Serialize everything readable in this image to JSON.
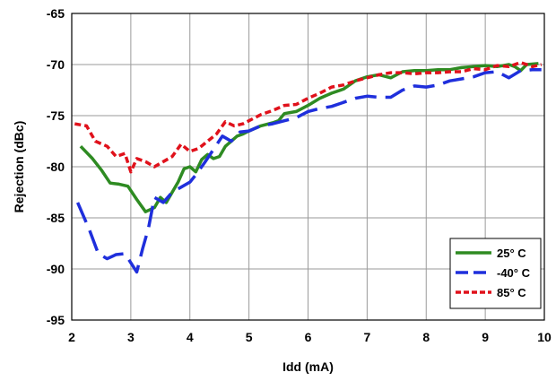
{
  "chart_data": {
    "type": "line",
    "title": "",
    "xlabel": "Idd (mA)",
    "ylabel": "Rejection (dBc)",
    "xlim": [
      2,
      10
    ],
    "ylim": [
      -95,
      -65
    ],
    "xticks": [
      "2",
      "3",
      "4",
      "5",
      "6",
      "7",
      "8",
      "9",
      "10"
    ],
    "yticks": [
      "-65",
      "-70",
      "-75",
      "-80",
      "-85",
      "-90",
      "-95"
    ],
    "grid": true,
    "legend_position": "bottom-right",
    "series": [
      {
        "name": "25° C",
        "color": "#2e8b22",
        "dash": "solid",
        "points": [
          [
            2.15,
            -78
          ],
          [
            2.35,
            -79.2
          ],
          [
            2.5,
            -80.3
          ],
          [
            2.65,
            -81.6
          ],
          [
            2.8,
            -81.7
          ],
          [
            2.95,
            -81.9
          ],
          [
            3.1,
            -83.2
          ],
          [
            3.25,
            -84.4
          ],
          [
            3.4,
            -84
          ],
          [
            3.5,
            -83
          ],
          [
            3.6,
            -83.5
          ],
          [
            3.7,
            -82.5
          ],
          [
            3.8,
            -81.5
          ],
          [
            3.9,
            -80.2
          ],
          [
            4.0,
            -80.0
          ],
          [
            4.1,
            -80.5
          ],
          [
            4.2,
            -79.3
          ],
          [
            4.3,
            -78.8
          ],
          [
            4.4,
            -79.2
          ],
          [
            4.5,
            -79.0
          ],
          [
            4.6,
            -78.0
          ],
          [
            4.7,
            -77.5
          ],
          [
            4.8,
            -77.0
          ],
          [
            4.9,
            -76.8
          ],
          [
            5.0,
            -76.5
          ],
          [
            5.2,
            -76.0
          ],
          [
            5.4,
            -75.7
          ],
          [
            5.5,
            -75.5
          ],
          [
            5.6,
            -74.8
          ],
          [
            5.8,
            -74.6
          ],
          [
            6.0,
            -74.0
          ],
          [
            6.2,
            -73.3
          ],
          [
            6.4,
            -72.8
          ],
          [
            6.6,
            -72.4
          ],
          [
            6.8,
            -71.6
          ],
          [
            7.0,
            -71.2
          ],
          [
            7.2,
            -71.0
          ],
          [
            7.4,
            -71.3
          ],
          [
            7.6,
            -70.7
          ],
          [
            7.8,
            -70.6
          ],
          [
            8.0,
            -70.6
          ],
          [
            8.2,
            -70.5
          ],
          [
            8.4,
            -70.5
          ],
          [
            8.6,
            -70.3
          ],
          [
            8.8,
            -70.2
          ],
          [
            9.0,
            -70.1
          ],
          [
            9.2,
            -70.2
          ],
          [
            9.4,
            -70.0
          ],
          [
            9.5,
            -70.2
          ],
          [
            9.6,
            -70.6
          ],
          [
            9.7,
            -70.0
          ],
          [
            9.9,
            -69.9
          ]
        ]
      },
      {
        "name": "-40° C",
        "color": "#1f2fdc",
        "dash": "long-dash",
        "points": [
          [
            2.1,
            -83.5
          ],
          [
            2.3,
            -86.2
          ],
          [
            2.45,
            -88.5
          ],
          [
            2.6,
            -89.0
          ],
          [
            2.75,
            -88.6
          ],
          [
            2.9,
            -88.5
          ],
          [
            3.1,
            -90.3
          ],
          [
            3.2,
            -88.0
          ],
          [
            3.3,
            -86.0
          ],
          [
            3.4,
            -83.0
          ],
          [
            3.55,
            -83.5
          ],
          [
            3.7,
            -82.5
          ],
          [
            3.85,
            -82.0
          ],
          [
            4.0,
            -81.5
          ],
          [
            4.1,
            -80.8
          ],
          [
            4.25,
            -79.6
          ],
          [
            4.4,
            -78.3
          ],
          [
            4.55,
            -77.0
          ],
          [
            4.7,
            -77.5
          ],
          [
            4.85,
            -76.6
          ],
          [
            5.0,
            -76.5
          ],
          [
            5.2,
            -76.0
          ],
          [
            5.4,
            -75.8
          ],
          [
            5.6,
            -75.5
          ],
          [
            5.8,
            -75.2
          ],
          [
            6.0,
            -74.6
          ],
          [
            6.2,
            -74.3
          ],
          [
            6.4,
            -74.1
          ],
          [
            6.6,
            -73.7
          ],
          [
            6.8,
            -73.3
          ],
          [
            7.0,
            -73.1
          ],
          [
            7.2,
            -73.2
          ],
          [
            7.4,
            -73.2
          ],
          [
            7.6,
            -72.5
          ],
          [
            7.8,
            -72.1
          ],
          [
            8.0,
            -72.2
          ],
          [
            8.2,
            -72.0
          ],
          [
            8.4,
            -71.6
          ],
          [
            8.6,
            -71.4
          ],
          [
            8.8,
            -71.2
          ],
          [
            9.0,
            -70.8
          ],
          [
            9.2,
            -70.7
          ],
          [
            9.4,
            -71.3
          ],
          [
            9.6,
            -70.6
          ],
          [
            9.8,
            -70.5
          ],
          [
            9.95,
            -70.5
          ]
        ]
      },
      {
        "name": "85° C",
        "color": "#e0111b",
        "dash": "short-dash",
        "points": [
          [
            2.05,
            -75.8
          ],
          [
            2.25,
            -76.0
          ],
          [
            2.4,
            -77.5
          ],
          [
            2.6,
            -78.0
          ],
          [
            2.75,
            -79.0
          ],
          [
            2.9,
            -78.7
          ],
          [
            3.0,
            -80.5
          ],
          [
            3.1,
            -79.2
          ],
          [
            3.25,
            -79.5
          ],
          [
            3.4,
            -80.0
          ],
          [
            3.55,
            -79.5
          ],
          [
            3.7,
            -79.0
          ],
          [
            3.85,
            -77.8
          ],
          [
            4.0,
            -78.5
          ],
          [
            4.15,
            -78.2
          ],
          [
            4.3,
            -77.5
          ],
          [
            4.45,
            -76.8
          ],
          [
            4.6,
            -75.6
          ],
          [
            4.75,
            -76.0
          ],
          [
            4.9,
            -75.8
          ],
          [
            5.0,
            -75.5
          ],
          [
            5.2,
            -74.9
          ],
          [
            5.4,
            -74.5
          ],
          [
            5.6,
            -74.0
          ],
          [
            5.8,
            -73.9
          ],
          [
            6.0,
            -73.3
          ],
          [
            6.2,
            -72.8
          ],
          [
            6.4,
            -72.2
          ],
          [
            6.6,
            -72.0
          ],
          [
            6.8,
            -71.6
          ],
          [
            7.0,
            -71.3
          ],
          [
            7.2,
            -71.0
          ],
          [
            7.4,
            -70.8
          ],
          [
            7.6,
            -70.8
          ],
          [
            7.8,
            -70.9
          ],
          [
            8.0,
            -70.8
          ],
          [
            8.2,
            -70.8
          ],
          [
            8.4,
            -70.7
          ],
          [
            8.6,
            -70.7
          ],
          [
            8.8,
            -70.4
          ],
          [
            9.0,
            -70.5
          ],
          [
            9.2,
            -70.1
          ],
          [
            9.4,
            -70.2
          ],
          [
            9.6,
            -69.8
          ],
          [
            9.8,
            -70.2
          ],
          [
            9.95,
            -70.0
          ]
        ]
      }
    ]
  }
}
